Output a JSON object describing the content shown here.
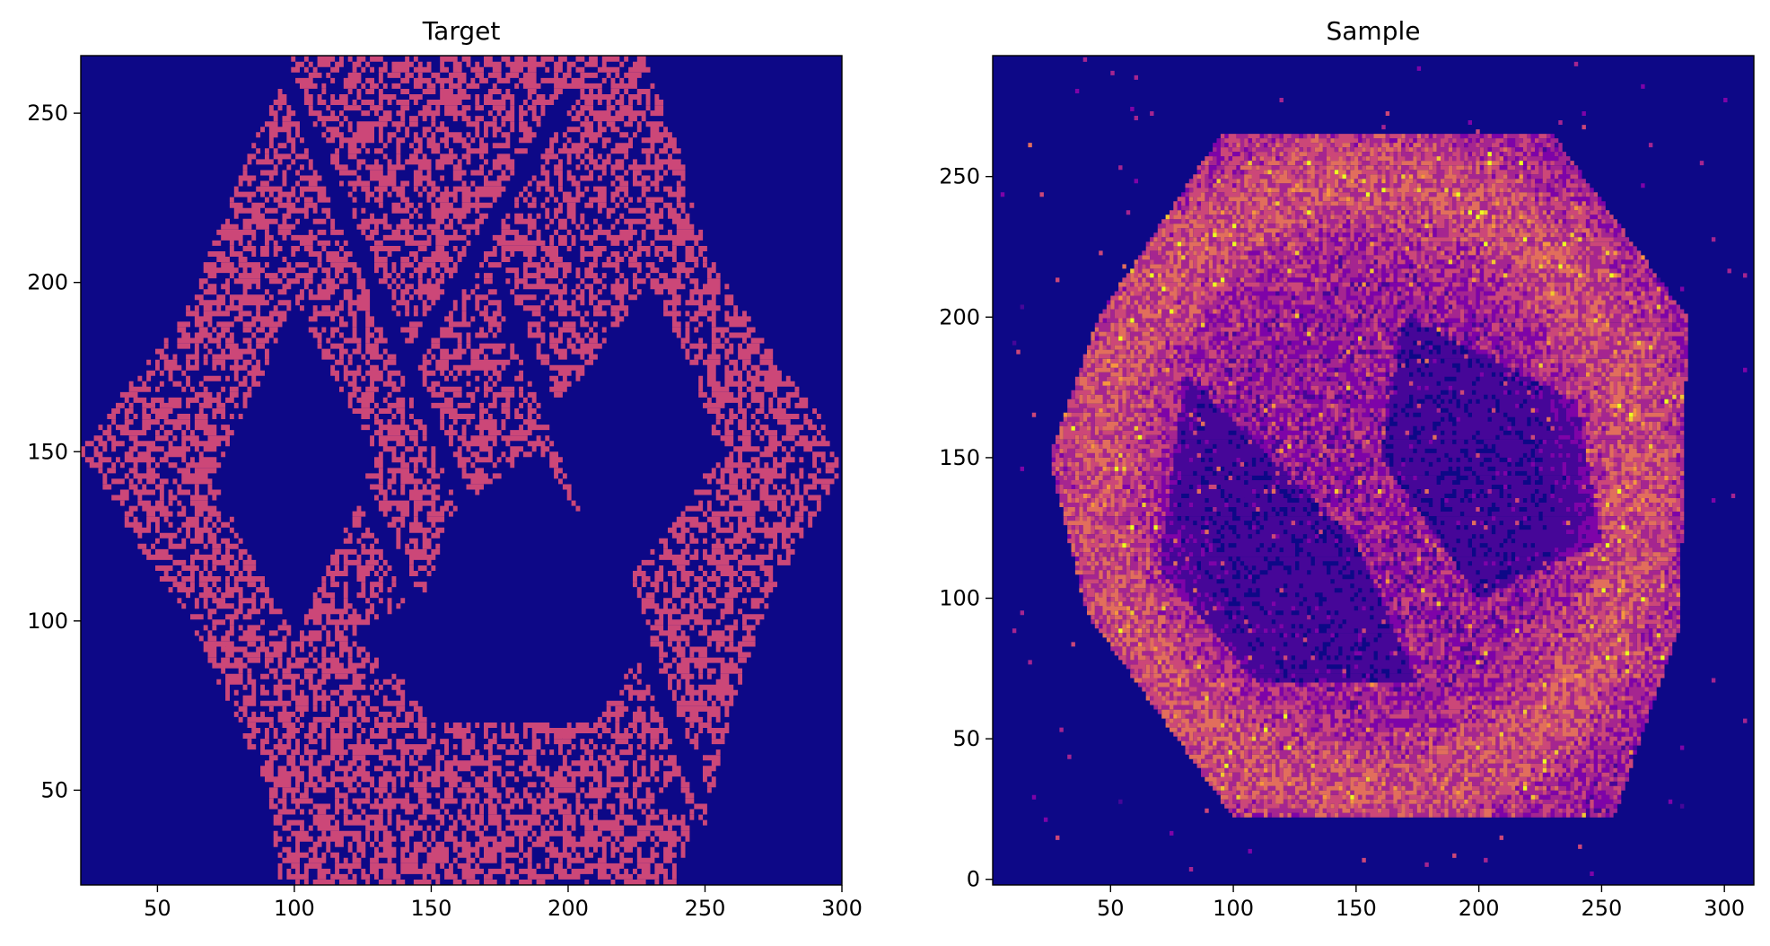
{
  "chart_data": [
    {
      "type": "heatmap",
      "title": "Target",
      "xlim": [
        22,
        300
      ],
      "ylim": [
        22,
        267
      ],
      "x_ticks": [
        50,
        100,
        150,
        200,
        250,
        300
      ],
      "y_ticks": [
        50,
        100,
        150,
        200,
        250
      ],
      "colormap": "plasma",
      "background_color": "#0d0887",
      "fill_color": "#cc4778",
      "density": 0.55,
      "regions": [
        [
          [
            22,
            150
          ],
          [
            30,
            140
          ],
          [
            45,
            120
          ],
          [
            62,
            100
          ],
          [
            85,
            60
          ],
          [
            90,
            50
          ],
          [
            95,
            22
          ],
          [
            240,
            22
          ],
          [
            245,
            40
          ],
          [
            240,
            55
          ],
          [
            230,
            45
          ],
          [
            250,
            40
          ],
          [
            262,
            80
          ],
          [
            275,
            110
          ],
          [
            290,
            130
          ],
          [
            300,
            145
          ],
          [
            292,
            160
          ],
          [
            270,
            185
          ],
          [
            258,
            200
          ],
          [
            250,
            210
          ],
          [
            240,
            240
          ],
          [
            228,
            267
          ],
          [
            100,
            267
          ],
          [
            90,
            250
          ],
          [
            80,
            230
          ],
          [
            70,
            210
          ],
          [
            60,
            190
          ],
          [
            40,
            170
          ]
        ],
        [
          [
            70,
            142
          ],
          [
            90,
            175
          ],
          [
            100,
            195
          ],
          [
            115,
            170
          ],
          [
            130,
            150
          ],
          [
            120,
            130
          ],
          [
            100,
            95
          ],
          [
            90,
            110
          ]
        ],
        [
          [
            120,
            95
          ],
          [
            140,
            82
          ],
          [
            145,
            75
          ],
          [
            150,
            70
          ],
          [
            210,
            70
          ],
          [
            230,
            95
          ],
          [
            225,
            110
          ],
          [
            205,
            130
          ],
          [
            190,
            150
          ],
          [
            170,
            140
          ],
          [
            155,
            130
          ],
          [
            150,
            110
          ]
        ],
        [
          [
            192,
            160
          ],
          [
            212,
            180
          ],
          [
            230,
            200
          ],
          [
            245,
            175
          ],
          [
            255,
            150
          ],
          [
            240,
            130
          ],
          [
            220,
            110
          ],
          [
            205,
            130
          ]
        ]
      ],
      "gap_bands": [
        [
          [
            95,
            265
          ],
          [
            170,
            120
          ]
        ],
        [
          [
            175,
            200
          ],
          [
            248,
            50
          ]
        ],
        [
          [
            98,
            185
          ],
          [
            150,
            95
          ]
        ],
        [
          [
            200,
            255
          ],
          [
            145,
            180
          ]
        ]
      ]
    },
    {
      "type": "heatmap",
      "title": "Sample",
      "xlim": [
        2,
        312
      ],
      "ylim": [
        -2,
        293
      ],
      "x_ticks": [
        50,
        100,
        150,
        200,
        250,
        300
      ],
      "y_ticks": [
        0,
        50,
        100,
        150,
        200,
        250
      ],
      "colormap": "plasma",
      "background_color": "#0d0887",
      "hexagon": [
        [
          95,
          265
        ],
        [
          230,
          265
        ],
        [
          285,
          200
        ],
        [
          282,
          90
        ],
        [
          255,
          22
        ],
        [
          100,
          22
        ],
        [
          40,
          95
        ],
        [
          25,
          150
        ],
        [
          45,
          200
        ]
      ],
      "inner_shapes": [
        [
          [
            80,
            180
          ],
          [
            150,
            120
          ],
          [
            175,
            70
          ],
          [
            110,
            70
          ],
          [
            70,
            110
          ]
        ],
        [
          [
            170,
            200
          ],
          [
            240,
            170
          ],
          [
            250,
            120
          ],
          [
            200,
            100
          ],
          [
            160,
            150
          ]
        ]
      ],
      "bright_ring_center": [
        155,
        140
      ],
      "bright_ring_radius": 110
    }
  ]
}
